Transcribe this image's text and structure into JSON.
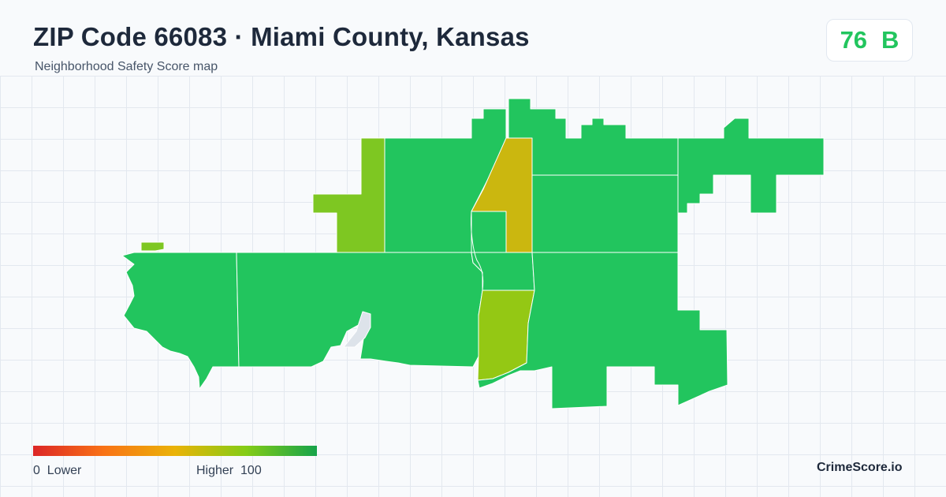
{
  "header": {
    "title": "ZIP Code 66083 · Miami County, Kansas",
    "subtitle": "Neighborhood Safety Score map"
  },
  "score": {
    "value": "76",
    "grade": "B",
    "color": "#22c55e"
  },
  "legend": {
    "min": "0",
    "min_label": "Lower",
    "max_label": "Higher",
    "max": "100",
    "gradient": [
      "#dc2626",
      "#f97316",
      "#eab308",
      "#84cc16",
      "#16a34a"
    ]
  },
  "brand": "CrimeScore.io",
  "map": {
    "colors": {
      "high": "#22c55e",
      "mid_high": "#7ec722",
      "mid": "#94c814",
      "low": "#cbb70f",
      "no_data": "#dde3ea"
    }
  }
}
